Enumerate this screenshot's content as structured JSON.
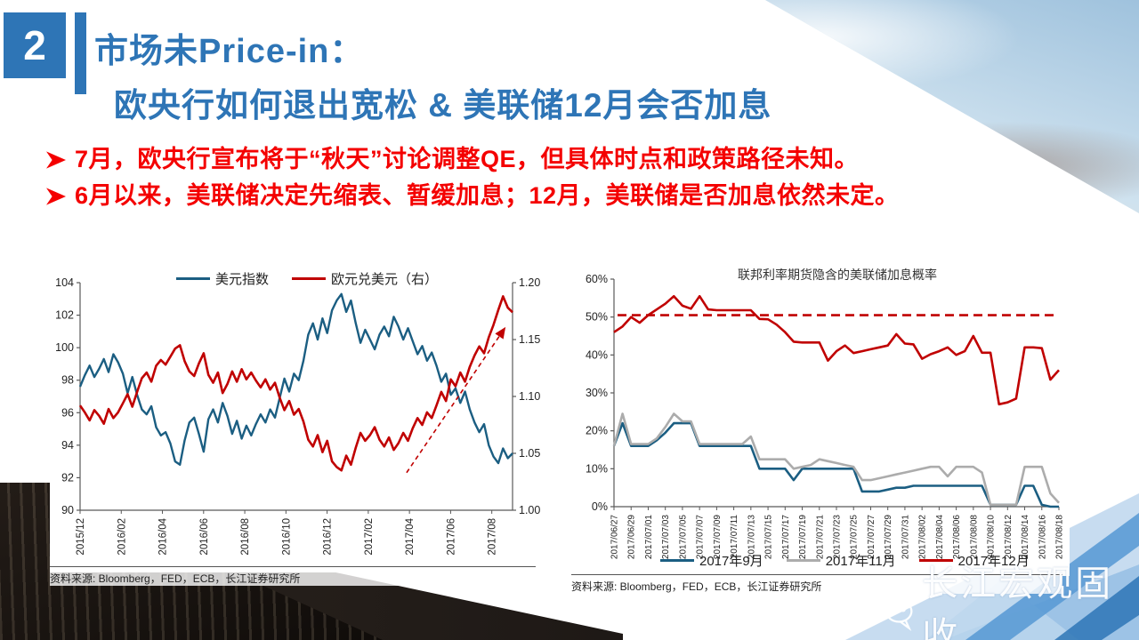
{
  "slide": {
    "page_number": "2",
    "title_line1": "市场未Price-in：",
    "title_line2": "欧央行如何退出宽松 & 美联储12月会否加息",
    "bullets": [
      {
        "text": "7月，欧央行宣布将于“秋天”讨论调整QE，但具体时点和政策路径未知。"
      },
      {
        "text": "6月以来，美联储决定先缩表、暂缓加息；12月，美联储是否加息依然未定。"
      }
    ],
    "wechat_label": "长江宏观固收",
    "colors": {
      "accent_blue": "#2E75B6",
      "bullet_red": "#F40000",
      "line_blue": "#1B5E82",
      "line_red": "#C00000",
      "line_gray": "#ACACAC",
      "axis": "#595959"
    }
  },
  "sources": {
    "left": "资料来源: Bloomberg，FED，ECB，长江证券研究所",
    "right": "资料来源: Bloomberg，FED，ECB，长江证券研究所"
  },
  "chart_data": [
    {
      "type": "line",
      "title": "",
      "legend_position": "top",
      "x_labels": [
        "2015/12",
        "2016/02",
        "2016/04",
        "2016/06",
        "2016/08",
        "2016/10",
        "2016/12",
        "2017/02",
        "2017/04",
        "2017/06",
        "2017/08"
      ],
      "x_label_end_fraction": 0.952,
      "y_left": {
        "min": 90,
        "max": 104,
        "tick_values": [
          90,
          92,
          94,
          96,
          98,
          100,
          102,
          104
        ],
        "tick_labels": [
          "90",
          "92",
          "94",
          "96",
          "98",
          "100",
          "102",
          "104"
        ]
      },
      "y_right": {
        "min": 1.0,
        "max": 1.2,
        "tick_values": [
          1.0,
          1.05,
          1.1,
          1.15,
          1.2
        ],
        "tick_labels": [
          "1.00",
          "1.05",
          "1.10",
          "1.15",
          "1.20"
        ]
      },
      "series": [
        {
          "name": "美元指数",
          "axis": "left",
          "color": "#1B5E82",
          "width": 2.4,
          "values": [
            97.6,
            98.3,
            98.9,
            98.2,
            98.7,
            99.3,
            98.5,
            99.6,
            99.1,
            98.4,
            97.2,
            98.2,
            97.1,
            96.2,
            95.9,
            96.4,
            95.1,
            94.6,
            94.8,
            94.1,
            93.0,
            92.8,
            94.3,
            95.4,
            95.7,
            94.7,
            93.6,
            95.6,
            96.2,
            95.4,
            96.6,
            95.8,
            94.7,
            95.5,
            94.4,
            95.2,
            94.6,
            95.3,
            95.9,
            95.4,
            96.2,
            95.7,
            96.9,
            98.1,
            97.3,
            98.4,
            98.0,
            99.2,
            100.8,
            101.5,
            100.5,
            101.8,
            100.9,
            102.3,
            102.9,
            103.3,
            102.2,
            102.9,
            101.5,
            100.3,
            101.1,
            100.5,
            99.9,
            100.8,
            101.3,
            100.7,
            101.9,
            101.3,
            100.5,
            101.2,
            100.4,
            99.6,
            100.1,
            99.2,
            99.7,
            98.9,
            97.9,
            98.4,
            97.1,
            97.5,
            96.6,
            97.3,
            96.2,
            95.4,
            94.8,
            95.3,
            94.0,
            93.3,
            92.9,
            93.8,
            93.2,
            93.5
          ]
        },
        {
          "name": "欧元兑美元（右）",
          "axis": "right",
          "color": "#C00000",
          "width": 2.6,
          "values": [
            1.092,
            1.086,
            1.079,
            1.088,
            1.083,
            1.076,
            1.089,
            1.081,
            1.086,
            1.094,
            1.102,
            1.091,
            1.104,
            1.116,
            1.121,
            1.113,
            1.127,
            1.132,
            1.128,
            1.135,
            1.142,
            1.145,
            1.131,
            1.122,
            1.118,
            1.129,
            1.138,
            1.119,
            1.112,
            1.121,
            1.103,
            1.111,
            1.122,
            1.113,
            1.124,
            1.115,
            1.121,
            1.114,
            1.108,
            1.115,
            1.106,
            1.112,
            1.099,
            1.088,
            1.096,
            1.084,
            1.089,
            1.078,
            1.062,
            1.056,
            1.066,
            1.051,
            1.061,
            1.043,
            1.038,
            1.035,
            1.048,
            1.04,
            1.055,
            1.068,
            1.061,
            1.066,
            1.073,
            1.062,
            1.056,
            1.064,
            1.053,
            1.059,
            1.068,
            1.061,
            1.072,
            1.081,
            1.075,
            1.086,
            1.081,
            1.092,
            1.104,
            1.096,
            1.115,
            1.109,
            1.121,
            1.113,
            1.126,
            1.136,
            1.144,
            1.138,
            1.152,
            1.163,
            1.176,
            1.188,
            1.178,
            1.174
          ]
        }
      ],
      "trend_arrow": {
        "axis": "right",
        "x1": 0.755,
        "y1": 1.033,
        "x2": 0.982,
        "y2": 1.16,
        "color": "#C00000"
      }
    },
    {
      "type": "line",
      "title": "联邦利率期货隐含的美联储加息概率",
      "legend_position": "bottom",
      "x_labels": [
        "2017/06/27",
        "2017/06/29",
        "2017/07/01",
        "2017/07/03",
        "2017/07/05",
        "2017/07/07",
        "2017/07/09",
        "2017/07/11",
        "2017/07/13",
        "2017/07/15",
        "2017/07/17",
        "2017/07/19",
        "2017/07/21",
        "2017/07/23",
        "2017/07/25",
        "2017/07/27",
        "2017/07/29",
        "2017/07/31",
        "2017/08/02",
        "2017/08/04",
        "2017/08/06",
        "2017/08/08",
        "2017/08/10",
        "2017/08/12",
        "2017/08/14",
        "2017/08/16",
        "2017/08/18"
      ],
      "x_label_end_fraction": 1.0,
      "y_left": {
        "min": 0,
        "max": 60,
        "tick_values": [
          0,
          10,
          20,
          30,
          40,
          50,
          60
        ],
        "tick_labels": [
          "0%",
          "10%",
          "20%",
          "30%",
          "40%",
          "50%",
          "60%"
        ]
      },
      "ref_line": {
        "axis": "left",
        "value": 50.5,
        "color": "#C00000"
      },
      "series": [
        {
          "name": "2017年9月",
          "axis": "left",
          "color": "#1B5E82",
          "width": 2.6,
          "values": [
            16,
            22,
            16,
            16,
            16,
            17.5,
            19.5,
            22,
            22,
            22,
            16,
            16,
            16,
            16,
            16,
            16,
            16,
            10,
            10,
            10,
            10,
            7,
            10,
            10,
            10,
            10,
            10,
            10,
            10,
            4,
            4,
            4,
            4.5,
            5,
            5,
            5.5,
            5.5,
            5.5,
            5.5,
            5.5,
            5.5,
            5.5,
            5.5,
            5.5,
            0.5,
            0.5,
            0.5,
            0.5,
            5.5,
            5.5,
            0.5,
            0,
            0
          ]
        },
        {
          "name": "2017年11月",
          "axis": "left",
          "color": "#ACACAC",
          "width": 2.6,
          "values": [
            16,
            24.5,
            16.5,
            16.5,
            16.5,
            18,
            21,
            24.5,
            22.5,
            22.5,
            16.5,
            16.5,
            16.5,
            16.5,
            16.5,
            16.5,
            18.5,
            12.5,
            12.5,
            12.5,
            12.5,
            10,
            10.5,
            11,
            12.5,
            12,
            11.5,
            11,
            10.5,
            7,
            7,
            7.5,
            8,
            8.5,
            9,
            9.5,
            10,
            10.5,
            10.5,
            8,
            10.5,
            10.5,
            10.5,
            9,
            0.5,
            0.5,
            0.5,
            0.5,
            10.5,
            10.5,
            10.5,
            3.5,
            1
          ]
        },
        {
          "name": "2017年12月",
          "axis": "left",
          "color": "#C00000",
          "width": 2.6,
          "values": [
            46,
            47.5,
            50,
            48.5,
            50.5,
            52,
            53.5,
            55.5,
            53,
            52.2,
            55.5,
            52,
            51.8,
            51.8,
            51.8,
            51.8,
            51.8,
            49.5,
            49.4,
            48,
            46,
            43.5,
            43.3,
            43.3,
            43.3,
            38.5,
            41,
            42.5,
            40.5,
            41,
            41.5,
            42,
            42.5,
            45.5,
            43,
            42.8,
            39,
            40.2,
            41,
            42,
            40,
            41,
            45,
            40.6,
            40.6,
            27,
            27.5,
            28.5,
            42,
            42,
            41.8,
            33.5,
            36
          ]
        }
      ]
    }
  ]
}
